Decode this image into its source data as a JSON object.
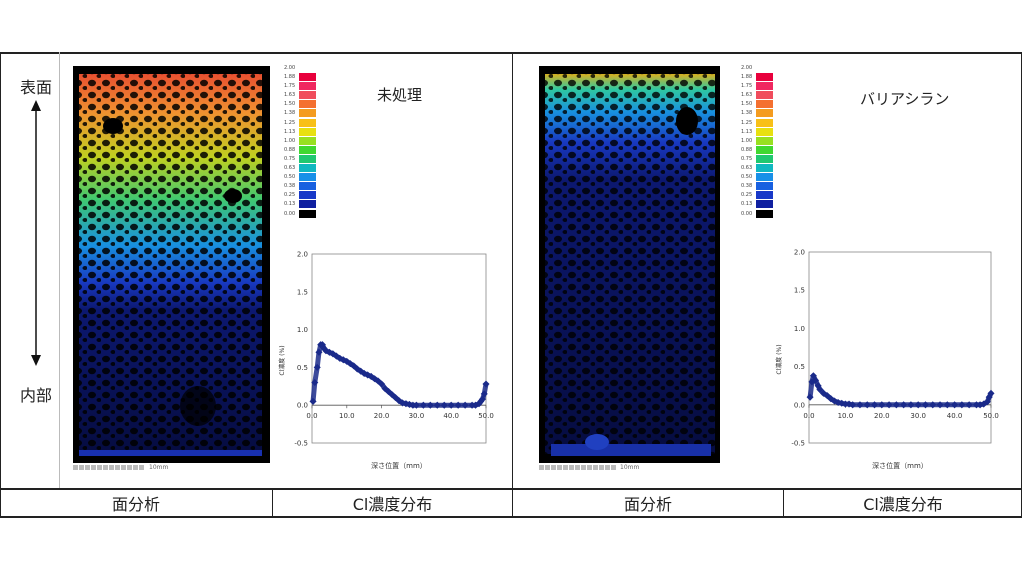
{
  "side": {
    "top_label": "表面",
    "bottom_label": "内部"
  },
  "columns": [
    {
      "footer_left": "面分析",
      "footer_right": "Cl濃度分布"
    },
    {
      "footer_left": "面分析",
      "footer_right": "Cl濃度分布"
    }
  ],
  "panels": [
    {
      "title": "未処理",
      "map_scale_label": "10mm"
    },
    {
      "title": "バリアシラン",
      "map_scale_label": "10mm"
    }
  ],
  "legend": {
    "labels": [
      "2.00",
      "1.88",
      "1.75",
      "1.63",
      "1.50",
      "1.38",
      "1.25",
      "1.13",
      "1.00",
      "0.88",
      "0.75",
      "0.63",
      "0.50",
      "0.38",
      "0.25",
      "0.13",
      "0.00"
    ],
    "colors": [
      "#ffffff",
      "#e8003c",
      "#f02860",
      "#f04c5c",
      "#f47030",
      "#f49c20",
      "#f8c018",
      "#e8e010",
      "#98e020",
      "#40d830",
      "#20c870",
      "#10b8c0",
      "#1890e8",
      "#1860e0",
      "#1838c8",
      "#1020a0",
      "#000000"
    ]
  },
  "chart_data": [
    {
      "type": "scatter",
      "title": "",
      "xlabel": "深さ位置（mm）",
      "ylabel": "Cl濃度 (%)",
      "xlim": [
        0,
        50
      ],
      "ylim": [
        -0.5,
        2.0
      ],
      "xticks": [
        "0.0",
        "10.0",
        "20.0",
        "30.0",
        "40.0",
        "50.0"
      ],
      "yticks": [
        "2.0",
        "1.5",
        "1.0",
        "0.5",
        "0.0",
        "-0.5"
      ],
      "series": [
        {
          "color": "#1a2a8a",
          "x": [
            0.3,
            0.8,
            1.5,
            2,
            2.5,
            3,
            3.5,
            4,
            5,
            6,
            7,
            8,
            9,
            10,
            11,
            12,
            13,
            14,
            15,
            16,
            17,
            18,
            19,
            20,
            21,
            22,
            23,
            24,
            25,
            26,
            27,
            28,
            29,
            30,
            32,
            34,
            36,
            38,
            40,
            42,
            44,
            46,
            47,
            48,
            48.5,
            49,
            49.5,
            50
          ],
          "y": [
            0.05,
            0.3,
            0.5,
            0.7,
            0.8,
            0.8,
            0.75,
            0.72,
            0.7,
            0.68,
            0.65,
            0.62,
            0.6,
            0.58,
            0.55,
            0.52,
            0.48,
            0.45,
            0.42,
            0.4,
            0.38,
            0.35,
            0.32,
            0.28,
            0.22,
            0.18,
            0.14,
            0.1,
            0.06,
            0.03,
            0.02,
            0.01,
            0,
            0,
            0,
            0,
            0,
            0,
            0,
            0,
            0,
            0,
            0,
            0.02,
            0.05,
            0.08,
            0.15,
            0.28
          ]
        }
      ]
    },
    {
      "type": "scatter",
      "title": "",
      "xlabel": "深さ位置（mm）",
      "ylabel": "Cl濃度 (%)",
      "xlim": [
        0,
        50
      ],
      "ylim": [
        -0.5,
        2.0
      ],
      "xticks": [
        "0.0",
        "10.0",
        "20.0",
        "30.0",
        "40.0",
        "50.0"
      ],
      "yticks": [
        "2.0",
        "1.5",
        "1.0",
        "0.5",
        "0.0",
        "-0.5"
      ],
      "series": [
        {
          "color": "#1a2a8a",
          "x": [
            0.3,
            0.8,
            1.2,
            1.8,
            2.5,
            3,
            4,
            5,
            6,
            7,
            8,
            9,
            10,
            11,
            12,
            14,
            16,
            18,
            20,
            22,
            24,
            26,
            28,
            30,
            32,
            34,
            36,
            38,
            40,
            42,
            44,
            46,
            47,
            48,
            49,
            49.5,
            50
          ],
          "y": [
            0.1,
            0.3,
            0.38,
            0.32,
            0.25,
            0.2,
            0.15,
            0.12,
            0.08,
            0.05,
            0.03,
            0.02,
            0.01,
            0.01,
            0,
            0,
            0,
            0,
            0,
            0,
            0,
            0,
            0,
            0,
            0,
            0,
            0,
            0,
            0,
            0,
            0,
            0,
            0,
            0.01,
            0.04,
            0.1,
            0.15
          ]
        }
      ]
    }
  ]
}
